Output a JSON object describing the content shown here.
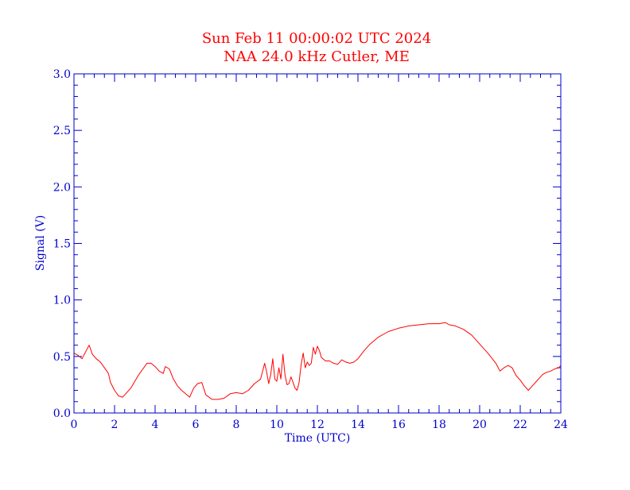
{
  "colors": {
    "axis": "#0000cc",
    "signal": "#ff0000",
    "title": "#ff0000",
    "background": "#ffffff"
  },
  "chart_data": {
    "type": "line",
    "title": "Sun Feb 11 00:00:02 UTC 2024",
    "subtitle": "NAA 24.0 kHz Cutler, ME",
    "xlabel": "Time (UTC)",
    "ylabel": "Signal (V)",
    "xlim": [
      0,
      24
    ],
    "ylim": [
      0.0,
      3.0
    ],
    "xticks": [
      "0",
      "2",
      "4",
      "6",
      "8",
      "10",
      "12",
      "14",
      "16",
      "18",
      "20",
      "22",
      "24"
    ],
    "yticks": [
      "0.0",
      "0.5",
      "1.0",
      "1.5",
      "2.0",
      "2.5",
      "3.0"
    ],
    "grid": false,
    "series": [
      {
        "color": "#ff0000",
        "x": [
          0.0,
          0.2,
          0.4,
          0.6,
          0.75,
          0.9,
          1.1,
          1.3,
          1.5,
          1.7,
          1.8,
          2.0,
          2.2,
          2.4,
          2.6,
          2.8,
          3.0,
          3.2,
          3.4,
          3.6,
          3.8,
          4.0,
          4.2,
          4.4,
          4.5,
          4.7,
          4.9,
          5.1,
          5.3,
          5.5,
          5.7,
          5.9,
          6.1,
          6.3,
          6.5,
          6.8,
          7.1,
          7.4,
          7.7,
          8.0,
          8.3,
          8.6,
          8.9,
          9.2,
          9.4,
          9.5,
          9.6,
          9.7,
          9.8,
          9.9,
          10.0,
          10.1,
          10.2,
          10.3,
          10.4,
          10.5,
          10.6,
          10.7,
          10.8,
          10.9,
          11.0,
          11.1,
          11.2,
          11.3,
          11.4,
          11.5,
          11.6,
          11.7,
          11.8,
          11.9,
          12.0,
          12.1,
          12.2,
          12.4,
          12.6,
          12.8,
          13.0,
          13.2,
          13.4,
          13.6,
          13.8,
          14.0,
          14.3,
          14.6,
          15.0,
          15.5,
          16.0,
          16.5,
          17.0,
          17.5,
          18.0,
          18.3,
          18.5,
          18.8,
          19.2,
          19.6,
          20.0,
          20.4,
          20.8,
          21.0,
          21.2,
          21.4,
          21.6,
          21.8,
          22.0,
          22.2,
          22.4,
          22.6,
          22.7,
          22.9,
          23.1,
          23.3,
          23.5,
          23.7,
          23.9,
          24.0
        ],
        "y": [
          0.53,
          0.51,
          0.48,
          0.55,
          0.6,
          0.52,
          0.48,
          0.45,
          0.4,
          0.35,
          0.27,
          0.2,
          0.15,
          0.14,
          0.18,
          0.22,
          0.28,
          0.34,
          0.39,
          0.44,
          0.44,
          0.41,
          0.37,
          0.35,
          0.41,
          0.39,
          0.3,
          0.24,
          0.2,
          0.17,
          0.14,
          0.22,
          0.26,
          0.27,
          0.16,
          0.12,
          0.12,
          0.13,
          0.17,
          0.18,
          0.17,
          0.2,
          0.26,
          0.3,
          0.44,
          0.36,
          0.26,
          0.34,
          0.48,
          0.3,
          0.28,
          0.4,
          0.3,
          0.52,
          0.34,
          0.25,
          0.26,
          0.32,
          0.27,
          0.22,
          0.2,
          0.27,
          0.43,
          0.53,
          0.4,
          0.45,
          0.42,
          0.44,
          0.58,
          0.52,
          0.59,
          0.55,
          0.49,
          0.46,
          0.46,
          0.44,
          0.43,
          0.47,
          0.45,
          0.44,
          0.45,
          0.48,
          0.55,
          0.61,
          0.67,
          0.72,
          0.75,
          0.77,
          0.78,
          0.79,
          0.79,
          0.8,
          0.78,
          0.77,
          0.74,
          0.69,
          0.61,
          0.53,
          0.44,
          0.37,
          0.4,
          0.42,
          0.4,
          0.33,
          0.29,
          0.24,
          0.2,
          0.24,
          0.26,
          0.3,
          0.34,
          0.36,
          0.37,
          0.39,
          0.4,
          0.42
        ]
      }
    ]
  }
}
